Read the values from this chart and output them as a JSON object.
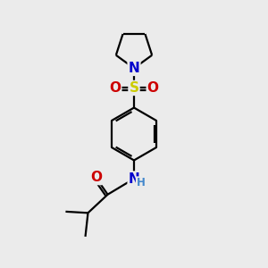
{
  "bg_color": "#ebebeb",
  "atom_colors": {
    "C": "#000000",
    "N": "#0000cc",
    "O": "#cc0000",
    "S": "#cccc00",
    "H": "#4488cc"
  },
  "bond_color": "#000000",
  "bond_width": 1.6,
  "font_size_atom": 10,
  "font_size_h": 8.5,
  "xlim": [
    0,
    10
  ],
  "ylim": [
    0,
    10
  ]
}
